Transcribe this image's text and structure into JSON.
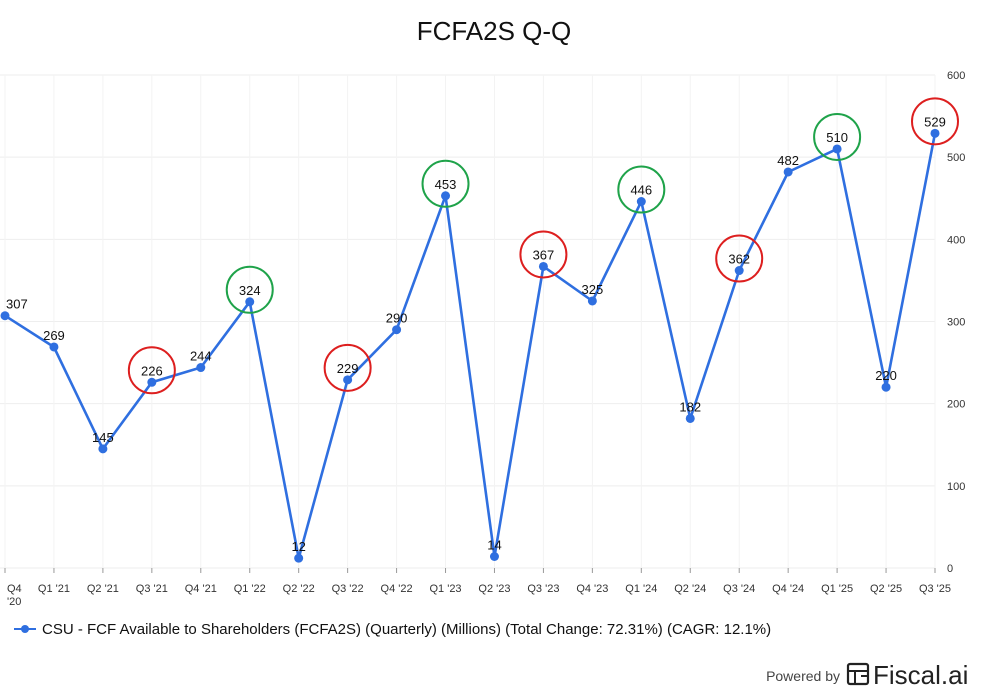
{
  "chart_data": {
    "type": "line",
    "title": "FCFA2S Q-Q",
    "xlabel": "",
    "ylabel": "",
    "ylim": [
      0,
      600
    ],
    "yticks": [
      "0",
      "100",
      "200",
      "300",
      "400",
      "500",
      "600"
    ],
    "categories": [
      "Q4 '20",
      "Q1 '21",
      "Q2 '21",
      "Q3 '21",
      "Q4 '21",
      "Q1 '22",
      "Q2 '22",
      "Q3 '22",
      "Q4 '22",
      "Q1 '23",
      "Q2 '23",
      "Q3 '23",
      "Q4 '23",
      "Q1 '24",
      "Q2 '24",
      "Q3 '24",
      "Q4 '24",
      "Q1 '25",
      "Q2 '25",
      "Q3 '25"
    ],
    "category_lines": [
      [
        "Q4",
        "'20"
      ],
      [
        "Q1 '21"
      ],
      [
        "Q2 '21"
      ],
      [
        "Q3 '21"
      ],
      [
        "Q4 '21"
      ],
      [
        "Q1 '22"
      ],
      [
        "Q2 '22"
      ],
      [
        "Q3 '22"
      ],
      [
        "Q4 '22"
      ],
      [
        "Q1 '23"
      ],
      [
        "Q2 '23"
      ],
      [
        "Q3 '23"
      ],
      [
        "Q4 '23"
      ],
      [
        "Q1 '24"
      ],
      [
        "Q2 '24"
      ],
      [
        "Q3 '24"
      ],
      [
        "Q4 '24"
      ],
      [
        "Q1 '25"
      ],
      [
        "Q2 '25"
      ],
      [
        "Q3 '25"
      ]
    ],
    "series": [
      {
        "name": "CSU - FCF Available to Shareholders (FCFA2S) (Quarterly) (Millions) (Total Change: 72.31%) (CAGR: 12.1%)",
        "values": [
          307,
          269,
          145,
          226,
          244,
          324,
          12,
          229,
          290,
          453,
          14,
          367,
          325,
          446,
          182,
          362,
          482,
          510,
          220,
          529
        ],
        "labels": [
          "307",
          "269",
          "145",
          "226",
          "244",
          "324",
          "12",
          "229",
          "290",
          "453",
          "14",
          "367",
          "325",
          "446",
          "182",
          "362",
          "482",
          "510",
          "220",
          "529"
        ],
        "color": "#2f6fe0"
      }
    ],
    "highlights": [
      {
        "index": 3,
        "kind": "low",
        "color": "#dd1f1f"
      },
      {
        "index": 5,
        "kind": "high",
        "color": "#1fa34a"
      },
      {
        "index": 7,
        "kind": "low",
        "color": "#dd1f1f"
      },
      {
        "index": 9,
        "kind": "high",
        "color": "#1fa34a"
      },
      {
        "index": 11,
        "kind": "low",
        "color": "#dd1f1f"
      },
      {
        "index": 13,
        "kind": "high",
        "color": "#1fa34a"
      },
      {
        "index": 15,
        "kind": "low",
        "color": "#dd1f1f"
      },
      {
        "index": 17,
        "kind": "high",
        "color": "#1fa34a"
      },
      {
        "index": 19,
        "kind": "low",
        "color": "#dd1f1f"
      }
    ],
    "legend": "bottom-left",
    "grid": true
  },
  "footer": {
    "powered_by": "Powered by",
    "brand": "Fiscal.ai",
    "logo_icon": "fiscal-logo-icon"
  }
}
